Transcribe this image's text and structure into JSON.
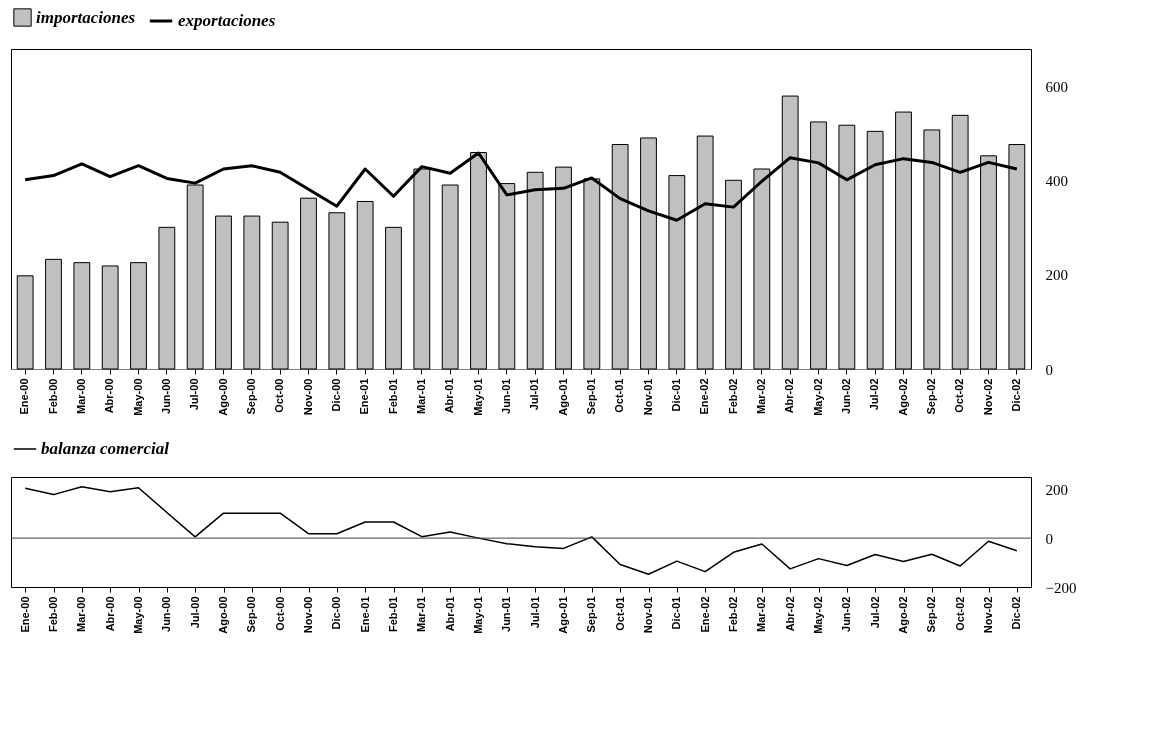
{
  "chart_data": [
    {
      "type": "bar",
      "categories": [
        "Ene-00",
        "Feb-00",
        "Mar-00",
        "Abr-00",
        "May-00",
        "Jun-00",
        "Jul-00",
        "Ago-00",
        "Sep-00",
        "Oct-00",
        "Nov-00",
        "Dic-00",
        "Ene-01",
        "Feb-01",
        "Mar-01",
        "Abr-01",
        "May-01",
        "Jun-01",
        "Jul-01",
        "Ago-01",
        "Sep-01",
        "Oct-01",
        "Nov-01",
        "Dic-01",
        "Ene-02",
        "Feb-02",
        "Mar-02",
        "Abr-02",
        "May-02",
        "Jun-02",
        "Jul-02",
        "Ago-02",
        "Sep-02",
        "Oct-02",
        "Nov-02",
        "Dic-02"
      ],
      "series": [
        {
          "name": "importaciones",
          "type": "bar",
          "color": "#c0c0c0",
          "values": [
            198,
            233,
            226,
            219,
            226,
            301,
            391,
            325,
            325,
            312,
            363,
            332,
            356,
            301,
            425,
            391,
            460,
            394,
            418,
            429,
            404,
            477,
            491,
            411,
            495,
            401,
            425,
            580,
            525,
            518,
            505,
            546,
            508,
            539,
            453,
            477
          ]
        },
        {
          "name": "exportaciones",
          "type": "line",
          "color": "#000000",
          "values": [
            402,
            411,
            436,
            409,
            432,
            405,
            395,
            425,
            432,
            418,
            382,
            346,
            425,
            367,
            430,
            416,
            459,
            370,
            381,
            384,
            406,
            362,
            336,
            316,
            351,
            344,
            399,
            449,
            438,
            402,
            434,
            447,
            439,
            418,
            439,
            425
          ]
        }
      ],
      "ylim": [
        0,
        680
      ],
      "yticks": [
        0,
        200,
        400,
        600
      ],
      "legend": "top",
      "grid": false
    },
    {
      "type": "line",
      "categories": [
        "Ene-00",
        "Feb-00",
        "Mar-00",
        "Abr-00",
        "May-00",
        "Jun-00",
        "Jul-00",
        "Ago-00",
        "Sep-00",
        "Oct-00",
        "Nov-00",
        "Dic-00",
        "Ene-01",
        "Feb-01",
        "Mar-01",
        "Abr-01",
        "May-01",
        "Jun-01",
        "Jul-01",
        "Ago-01",
        "Sep-01",
        "Oct-01",
        "Nov-01",
        "Dic-01",
        "Ene-02",
        "Feb-02",
        "Mar-02",
        "Abr-02",
        "May-02",
        "Jun-02",
        "Jul-02",
        "Ago-02",
        "Sep-02",
        "Oct-02",
        "Nov-02",
        "Dic-02"
      ],
      "series": [
        {
          "name": "balanza comercial",
          "color": "#000000",
          "values": [
            204,
            178,
            210,
            190,
            206,
            105,
            5,
            102,
            102,
            102,
            18,
            18,
            66,
            66,
            6,
            25,
            0,
            -23,
            -35,
            -42,
            5,
            -108,
            -148,
            -94,
            -137,
            -58,
            -24,
            -126,
            -84,
            -112,
            -67,
            -96,
            -66,
            -114,
            -13,
            -52
          ]
        }
      ],
      "ylim": [
        -200,
        250
      ],
      "yticks": [
        -200,
        0,
        200
      ],
      "ref_lines": [
        {
          "axis": "y",
          "value": 0
        }
      ],
      "legend": "top",
      "grid": false
    }
  ]
}
